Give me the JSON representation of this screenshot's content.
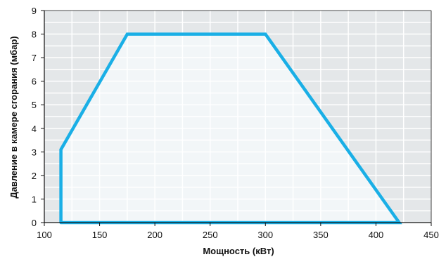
{
  "chart_data": {
    "type": "area",
    "title": "",
    "xlabel": "Мощность (кВт)",
    "ylabel": "Давление в камере сгорания (мбар)",
    "xlim": [
      100,
      450
    ],
    "ylim": [
      0,
      9
    ],
    "x_ticks": [
      100,
      150,
      200,
      250,
      300,
      350,
      400,
      450
    ],
    "y_ticks": [
      0,
      1,
      2,
      3,
      4,
      5,
      6,
      7,
      8,
      9
    ],
    "x_minor_step": 25,
    "grid": true,
    "legend": "none",
    "series": [
      {
        "x": [
          115,
          115,
          175,
          300,
          421,
          115
        ],
        "y": [
          0,
          3.1,
          8,
          8,
          0,
          0
        ]
      }
    ]
  },
  "colors": {
    "outline": "#1aafe6",
    "region_fill": "#f2f6f8",
    "background_fill": "#e4e7e9",
    "grid_line": "#ffffff",
    "axis": "#111111"
  }
}
